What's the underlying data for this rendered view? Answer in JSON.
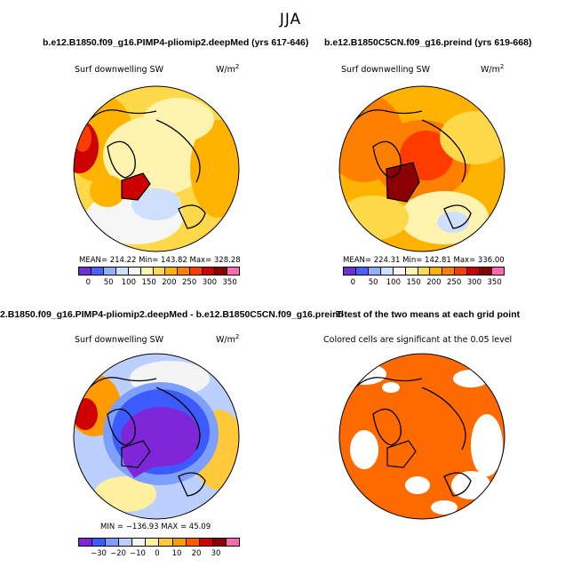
{
  "figure": {
    "suptitle": "JJA"
  },
  "colors": {
    "seq": [
      "#6a33d6",
      "#4a60ff",
      "#8fb0ff",
      "#cfe0ff",
      "#f6f6f6",
      "#fff3b0",
      "#ffd94a",
      "#ffb300",
      "#ff7f00",
      "#ff3b00",
      "#cc0000",
      "#8b0000",
      "#ff69b4"
    ],
    "div": [
      "#7f26d9",
      "#3b5bff",
      "#7da0ff",
      "#bcd0ff",
      "#f4f4f4",
      "#fff0a0",
      "#ffc93a",
      "#ff9a00",
      "#ff5a00",
      "#d10000",
      "#8b0000",
      "#ff69b4"
    ],
    "sig": "#ff6a00",
    "land_outline": "#000000"
  },
  "chart_data": [
    {
      "type": "heatmap",
      "title": "b.e12.B1850.f09_g16.PIMP4-pliomip2.deepMed (yrs 617-646)",
      "left_label": "Surf downwelling SW",
      "units_base": "W/m",
      "units_exp": "2",
      "stats": {
        "mean": "214.22",
        "min": "143.82",
        "max": "328.28"
      },
      "stats_text": "MEAN= 214.22    Min= 143.82    Max= 328.28",
      "colorbar_ticks": [
        "0",
        "50",
        "100",
        "150",
        "200",
        "250",
        "300",
        "350"
      ],
      "projection": "north polar stereographic"
    },
    {
      "type": "heatmap",
      "title": "b.e12.B1850C5CN.f09_g16.preind (yrs 619-668)",
      "left_label": "Surf downwelling SW",
      "units_base": "W/m",
      "units_exp": "2",
      "stats": {
        "mean": "224.31",
        "min": "142.81",
        "max": "336.00"
      },
      "stats_text": "MEAN= 224.31    Min= 142.81    Max= 336.00",
      "colorbar_ticks": [
        "0",
        "50",
        "100",
        "150",
        "200",
        "250",
        "300",
        "350"
      ],
      "projection": "north polar stereographic"
    },
    {
      "type": "heatmap",
      "title": "2.B1850.f09_g16.PIMP4-pliomip2.deepMed - b.e12.B1850C5CN.f09_g16.preind",
      "left_label": "Surf downwelling SW",
      "units_base": "W/m",
      "units_exp": "2",
      "stats": {
        "min": "-136.93",
        "max": "45.09"
      },
      "stats_text": "MIN = −136.93  MAX =   45.09",
      "colorbar_ticks": [
        "−30",
        "−20",
        "−10",
        "0",
        "10",
        "20",
        "30"
      ],
      "projection": "north polar stereographic"
    },
    {
      "type": "heatmap",
      "title": "T-test of the two means at each grid point",
      "left_label": "Colored cells are significant at the 0.05 level",
      "significance_level": 0.05,
      "projection": "north polar stereographic"
    }
  ]
}
